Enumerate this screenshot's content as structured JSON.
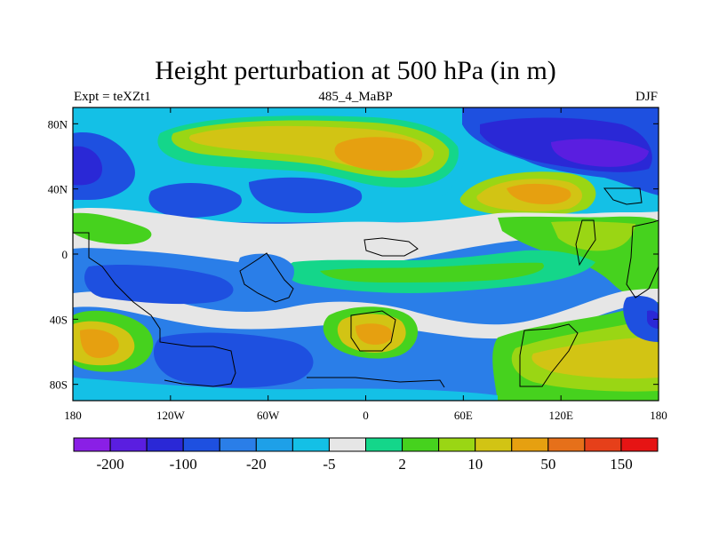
{
  "title": "Height perturbation at 500 hPa (in m)",
  "subtitle_left": "Expt = teXZt1",
  "subtitle_center": "485_4_MaBP",
  "subtitle_right": "DJF",
  "axes": {
    "lon_ticks": [
      {
        "value": -180,
        "label": "180"
      },
      {
        "value": -120,
        "label": "120W"
      },
      {
        "value": -60,
        "label": "60W"
      },
      {
        "value": 0,
        "label": "0"
      },
      {
        "value": 60,
        "label": "60E"
      },
      {
        "value": 120,
        "label": "120E"
      },
      {
        "value": 180,
        "label": "180"
      }
    ],
    "lat_ticks": [
      {
        "value": 80,
        "label": "80N"
      },
      {
        "value": 40,
        "label": "40N"
      },
      {
        "value": 0,
        "label": "0"
      },
      {
        "value": -40,
        "label": "40S"
      },
      {
        "value": -80,
        "label": "80S"
      }
    ],
    "lon_range": [
      -180,
      180
    ],
    "lat_range": [
      -90,
      90
    ]
  },
  "colorbar": {
    "colors": [
      "#8a1fe6",
      "#5a1ee0",
      "#2a28d6",
      "#1e50e0",
      "#2a7ee8",
      "#1ea0e8",
      "#14c0e6",
      "#e6e6e6",
      "#14d68a",
      "#46d21e",
      "#9ad614",
      "#d2c414",
      "#e6a010",
      "#e6701a",
      "#e6401a",
      "#e61414"
    ],
    "labels": [
      {
        "after_box": 1,
        "text": "-200"
      },
      {
        "after_box": 3,
        "text": "-100"
      },
      {
        "after_box": 5,
        "text": "-20"
      },
      {
        "after_box": 7,
        "text": "-5"
      },
      {
        "after_box": 9,
        "text": "2"
      },
      {
        "after_box": 11,
        "text": "10"
      },
      {
        "after_box": 13,
        "text": "50"
      },
      {
        "after_box": 15,
        "text": "150"
      }
    ]
  }
}
